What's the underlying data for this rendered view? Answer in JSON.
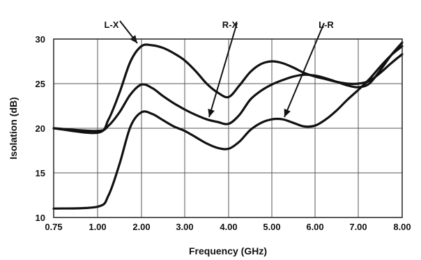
{
  "chart_data": {
    "type": "line",
    "xlabel": "Frequency (GHz)",
    "ylabel": "Isolation (dB)",
    "xlim": [
      0.75,
      8.0
    ],
    "ylim": [
      10,
      30
    ],
    "x_ticks": [
      "0.75",
      "1.00",
      "2.00",
      "3.00",
      "4.00",
      "5.00",
      "6.00",
      "7.00",
      "8.00"
    ],
    "y_ticks": [
      "10",
      "15",
      "20",
      "25",
      "30"
    ],
    "grid": true,
    "series": [
      {
        "name": "L-X",
        "x": [
          0.75,
          1.0,
          1.25,
          1.5,
          1.75,
          2.0,
          2.25,
          2.5,
          2.75,
          3.0,
          3.25,
          3.5,
          3.75,
          4.0,
          4.25,
          4.5,
          4.75,
          5.0,
          5.25,
          5.5,
          5.75,
          6.0,
          6.25,
          6.5,
          6.75,
          7.0,
          7.25,
          7.5,
          7.75,
          8.0
        ],
        "y": [
          20.0,
          19.5,
          21.0,
          24.0,
          27.5,
          29.2,
          29.3,
          29.0,
          28.4,
          27.6,
          26.4,
          25.0,
          24.0,
          23.5,
          24.8,
          26.3,
          27.2,
          27.5,
          27.3,
          26.8,
          26.2,
          25.8,
          25.5,
          25.2,
          25.0,
          25.0,
          25.3,
          26.2,
          27.3,
          28.3
        ]
      },
      {
        "name": "R-X",
        "x": [
          0.75,
          1.0,
          1.25,
          1.5,
          1.75,
          2.0,
          2.25,
          2.5,
          2.75,
          3.0,
          3.25,
          3.5,
          3.75,
          4.0,
          4.25,
          4.5,
          4.75,
          5.0,
          5.25,
          5.5,
          5.75,
          6.0,
          6.25,
          6.5,
          6.75,
          7.0,
          7.25,
          7.5,
          7.75,
          8.0
        ],
        "y": [
          20.0,
          19.7,
          20.3,
          21.8,
          23.8,
          24.9,
          24.5,
          23.6,
          22.8,
          22.1,
          21.5,
          21.0,
          20.7,
          20.5,
          21.5,
          23.2,
          24.2,
          24.9,
          25.4,
          25.8,
          26.0,
          25.9,
          25.6,
          25.2,
          24.8,
          24.6,
          25.0,
          26.5,
          28.2,
          29.6
        ]
      },
      {
        "name": "L-R",
        "x": [
          0.75,
          1.0,
          1.25,
          1.5,
          1.75,
          2.0,
          2.25,
          2.5,
          2.75,
          3.0,
          3.25,
          3.5,
          3.75,
          4.0,
          4.25,
          4.5,
          4.75,
          5.0,
          5.25,
          5.5,
          5.75,
          6.0,
          6.25,
          6.5,
          6.75,
          7.0,
          7.25,
          7.5,
          7.75,
          8.0
        ],
        "y": [
          11.0,
          11.2,
          12.5,
          16.0,
          20.2,
          21.8,
          21.6,
          20.9,
          20.2,
          19.7,
          19.0,
          18.3,
          17.8,
          17.7,
          18.5,
          19.8,
          20.6,
          21.0,
          21.0,
          20.6,
          20.2,
          20.3,
          21.0,
          22.0,
          23.2,
          24.3,
          25.5,
          26.9,
          28.2,
          29.2
        ]
      }
    ],
    "annotations": [
      {
        "text": "L-X",
        "series": "L-X"
      },
      {
        "text": "R-X",
        "series": "R-X"
      },
      {
        "text": "L-R",
        "series": "L-R"
      }
    ]
  }
}
